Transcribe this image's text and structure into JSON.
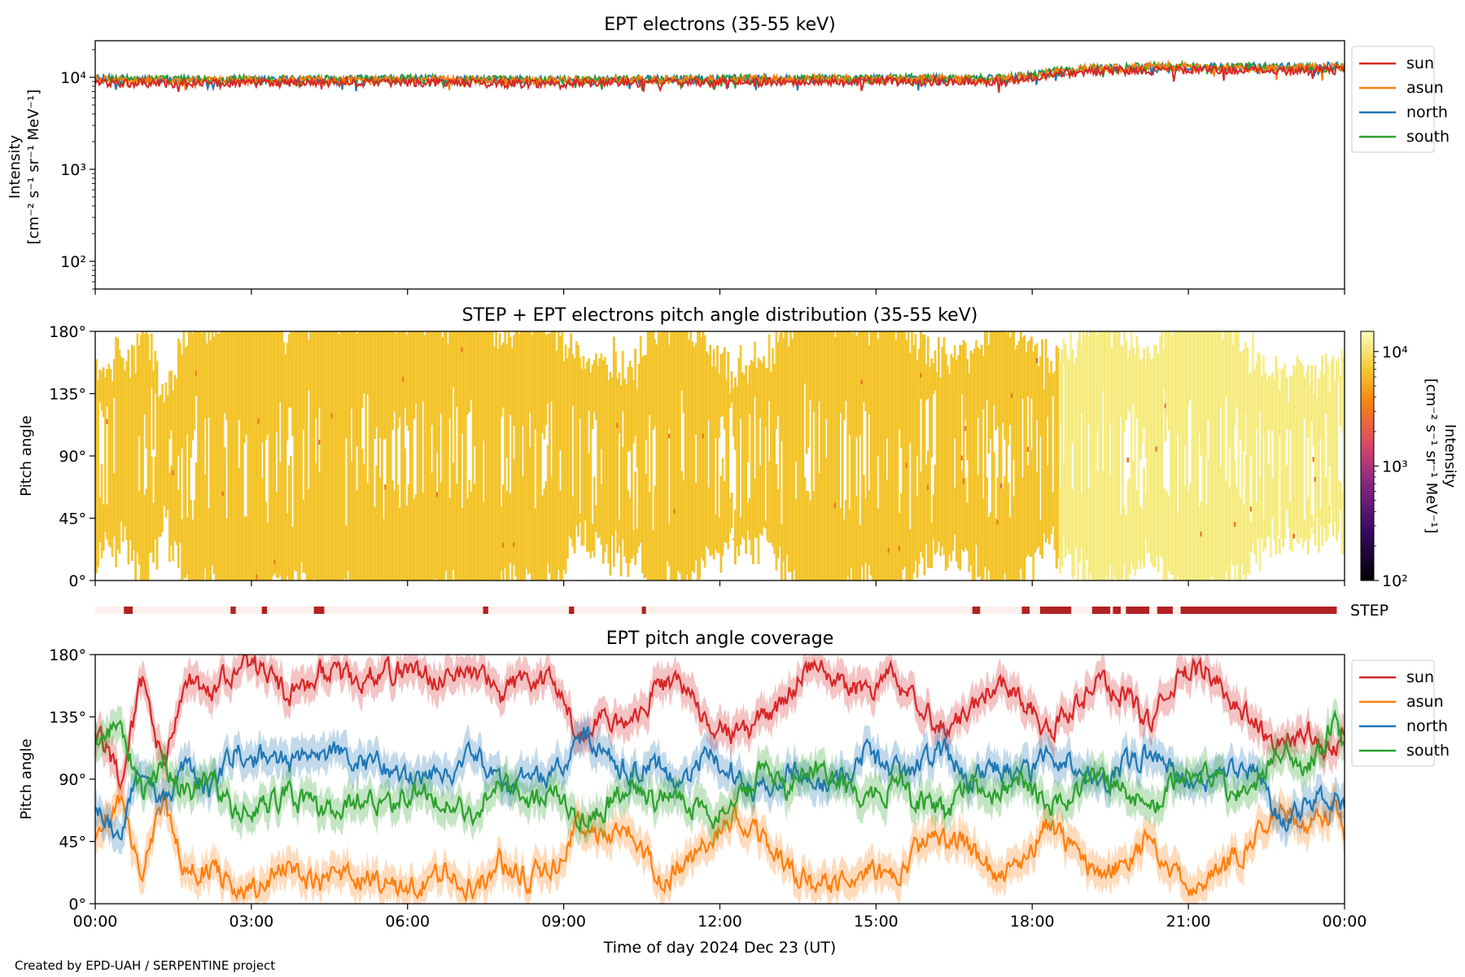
{
  "figure": {
    "footer": "Created by EPD-UAH / SERPENTINE project",
    "xlabel": "Time of day 2024 Dec 23 (UT)",
    "x_ticks": [
      "00:00",
      "03:00",
      "06:00",
      "09:00",
      "12:00",
      "15:00",
      "18:00",
      "21:00",
      "00:00"
    ]
  },
  "chart_data": [
    {
      "type": "line",
      "title": "EPT electrons (35-55 keV)",
      "ylabel": "Intensity",
      "ylabel_units": "[cm⁻² s⁻¹ sr⁻¹ MeV⁻¹]",
      "yscale": "log",
      "ylim": [
        50,
        25000
      ],
      "y_tick_labels": [
        "10²",
        "10³",
        "10⁴"
      ],
      "x_range_hours": [
        0,
        24
      ],
      "legend_position": "outside-right",
      "series": [
        {
          "name": "sun",
          "color": "#d62728",
          "x_hours": [
            0,
            2,
            4,
            6,
            8,
            10,
            12,
            14,
            16,
            17.5,
            18,
            18.5,
            19,
            20,
            21,
            22,
            23,
            24
          ],
          "values": [
            8800,
            8600,
            8700,
            8900,
            8600,
            8800,
            8900,
            9000,
            9100,
            9000,
            10000,
            10800,
            11500,
            12000,
            12000,
            12000,
            12000,
            12100
          ]
        },
        {
          "name": "asun",
          "color": "#ff7f0e",
          "x_hours": [
            0,
            2,
            4,
            6,
            8,
            10,
            12,
            14,
            16,
            17.5,
            18,
            18.5,
            19,
            20,
            20.5,
            21,
            22,
            23,
            24
          ],
          "values": [
            9400,
            9200,
            9300,
            9400,
            9200,
            9300,
            9400,
            9500,
            9600,
            9500,
            10500,
            11500,
            12300,
            12800,
            13500,
            12800,
            12500,
            12600,
            12700
          ]
        },
        {
          "name": "north",
          "color": "#1f77b4",
          "x_hours": [
            0,
            2,
            4,
            6,
            8,
            10,
            12,
            14,
            16,
            17.5,
            18,
            18.5,
            19,
            20,
            21,
            22,
            23,
            24
          ],
          "values": [
            9600,
            9300,
            9400,
            9500,
            9300,
            9400,
            9500,
            9600,
            9700,
            9600,
            10600,
            11500,
            12200,
            12700,
            12800,
            12800,
            13000,
            13500
          ]
        },
        {
          "name": "south",
          "color": "#2ca02c",
          "x_hours": [
            0,
            2,
            4,
            6,
            8,
            10,
            12,
            14,
            16,
            17.5,
            18,
            18.5,
            19,
            20,
            21,
            22,
            23,
            24
          ],
          "values": [
            9700,
            9400,
            9500,
            9700,
            9400,
            9500,
            9600,
            9700,
            9800,
            9700,
            10700,
            11600,
            12300,
            13000,
            13200,
            12900,
            12800,
            12900
          ]
        }
      ]
    },
    {
      "type": "heatmap",
      "title": "STEP + EPT electrons pitch angle distribution (35-55 keV)",
      "ylabel": "Pitch angle",
      "ylim": [
        0,
        180
      ],
      "y_tick_labels": [
        "0°",
        "45°",
        "90°",
        "135°",
        "180°"
      ],
      "x_range_hours": [
        0,
        24
      ],
      "colorbar": {
        "label": "Intensity",
        "units": "[cm⁻² s⁻¹ sr⁻¹ MeV⁻¹]",
        "scale": "log",
        "range": [
          100,
          15000
        ],
        "tick_labels": [
          "10²",
          "10³",
          "10⁴"
        ]
      },
      "intensity_by_period": [
        {
          "from_hour": 0,
          "to_hour": 18.5,
          "value": 9000
        },
        {
          "from_hour": 18.5,
          "to_hour": 24,
          "value": 12500
        }
      ]
    },
    {
      "type": "bar",
      "label": "STEP",
      "color": "#b22222",
      "x_range_hours": [
        0,
        24
      ],
      "active_intervals_hours": [
        [
          0.55,
          0.72
        ],
        [
          2.6,
          2.7
        ],
        [
          3.2,
          3.3
        ],
        [
          4.2,
          4.4
        ],
        [
          7.45,
          7.55
        ],
        [
          9.1,
          9.2
        ],
        [
          10.5,
          10.58
        ],
        [
          16.85,
          17.0
        ],
        [
          17.8,
          17.95
        ],
        [
          18.15,
          18.75
        ],
        [
          19.15,
          19.5
        ],
        [
          19.55,
          19.7
        ],
        [
          19.8,
          20.25
        ],
        [
          20.4,
          20.7
        ],
        [
          20.85,
          23.85
        ]
      ]
    },
    {
      "type": "line",
      "title": "EPT pitch angle coverage",
      "ylabel": "Pitch angle",
      "ylim": [
        0,
        180
      ],
      "y_tick_labels": [
        "0°",
        "45°",
        "90°",
        "135°",
        "180°"
      ],
      "x_range_hours": [
        0,
        24
      ],
      "legend_position": "outside-right",
      "series": [
        {
          "name": "sun",
          "color": "#d62728",
          "band_halfwidth_deg": 12,
          "x_hours": [
            0,
            0.5,
            0.9,
            1.3,
            1.8,
            2.2,
            2.7,
            3.2,
            3.7,
            4.3,
            5.0,
            5.5,
            6.0,
            6.7,
            7.3,
            7.8,
            8.3,
            8.8,
            9.3,
            9.8,
            10.3,
            10.8,
            11.3,
            11.8,
            12.3,
            12.8,
            13.3,
            13.8,
            14.3,
            14.8,
            15.3,
            15.8,
            16.3,
            16.8,
            17.3,
            17.8,
            18.3,
            18.8,
            19.3,
            19.8,
            20.3,
            20.8,
            21.3,
            21.8,
            22.3,
            22.8,
            23.3,
            23.8,
            24
          ],
          "values": [
            128,
            92,
            160,
            100,
            160,
            150,
            172,
            170,
            150,
            168,
            162,
            166,
            170,
            160,
            170,
            150,
            164,
            158,
            120,
            130,
            125,
            160,
            155,
            135,
            120,
            132,
            150,
            172,
            160,
            155,
            165,
            140,
            130,
            140,
            162,
            150,
            122,
            142,
            160,
            150,
            130,
            165,
            170,
            150,
            130,
            112,
            125,
            110,
            128
          ]
        },
        {
          "name": "asun",
          "color": "#ff7f0e",
          "band_halfwidth_deg": 12,
          "x_hours": [
            0,
            0.5,
            0.9,
            1.3,
            1.8,
            2.2,
            2.7,
            3.2,
            3.7,
            4.3,
            5.0,
            5.5,
            6.0,
            6.7,
            7.3,
            7.8,
            8.3,
            8.8,
            9.3,
            9.8,
            10.3,
            10.8,
            11.3,
            11.8,
            12.3,
            12.8,
            13.3,
            13.8,
            14.3,
            14.8,
            15.3,
            15.8,
            16.3,
            16.8,
            17.3,
            17.8,
            18.3,
            18.8,
            19.3,
            19.8,
            20.3,
            20.8,
            21.3,
            21.8,
            22.3,
            22.8,
            23.3,
            23.8,
            24
          ],
          "values": [
            52,
            80,
            18,
            75,
            20,
            28,
            10,
            12,
            30,
            14,
            20,
            15,
            10,
            22,
            12,
            30,
            18,
            25,
            60,
            48,
            52,
            20,
            28,
            45,
            60,
            50,
            28,
            10,
            18,
            25,
            15,
            40,
            50,
            40,
            20,
            30,
            58,
            38,
            20,
            30,
            50,
            15,
            10,
            30,
            50,
            68,
            55,
            70,
            52
          ]
        },
        {
          "name": "north",
          "color": "#1f77b4",
          "band_halfwidth_deg": 12,
          "x_hours": [
            0,
            0.5,
            0.9,
            1.3,
            1.8,
            2.2,
            2.7,
            3.2,
            3.7,
            4.3,
            5.0,
            5.5,
            6.0,
            6.7,
            7.3,
            7.8,
            8.3,
            8.8,
            9.3,
            9.8,
            10.3,
            10.8,
            11.3,
            11.8,
            12.3,
            12.8,
            13.3,
            13.8,
            14.3,
            14.8,
            15.3,
            15.8,
            16.3,
            16.8,
            17.3,
            17.8,
            18.3,
            18.8,
            19.3,
            19.8,
            20.3,
            20.8,
            21.3,
            21.8,
            22.3,
            22.8,
            23.3,
            23.8,
            24
          ],
          "values": [
            65,
            55,
            100,
            75,
            100,
            80,
            110,
            105,
            100,
            110,
            105,
            100,
            90,
            95,
            105,
            85,
            95,
            90,
            125,
            110,
            95,
            100,
            90,
            105,
            95,
            80,
            100,
            85,
            90,
            110,
            95,
            100,
            110,
            90,
            100,
            88,
            110,
            100,
            85,
            100,
            110,
            90,
            85,
            100,
            95,
            60,
            70,
            80,
            65
          ]
        },
        {
          "name": "south",
          "color": "#2ca02c",
          "band_halfwidth_deg": 12,
          "x_hours": [
            0,
            0.5,
            0.9,
            1.3,
            1.8,
            2.2,
            2.7,
            3.2,
            3.7,
            4.3,
            5.0,
            5.5,
            6.0,
            6.7,
            7.3,
            7.8,
            8.3,
            8.8,
            9.3,
            9.8,
            10.3,
            10.8,
            11.3,
            11.8,
            12.3,
            12.8,
            13.3,
            13.8,
            14.3,
            14.8,
            15.3,
            15.8,
            16.3,
            16.8,
            17.3,
            17.8,
            18.3,
            18.8,
            19.3,
            19.8,
            20.3,
            20.8,
            21.3,
            21.8,
            22.3,
            22.8,
            23.3,
            23.8,
            24
          ],
          "values": [
            115,
            130,
            80,
            100,
            80,
            90,
            65,
            70,
            80,
            65,
            75,
            70,
            80,
            75,
            65,
            90,
            72,
            80,
            55,
            70,
            85,
            75,
            80,
            60,
            70,
            95,
            80,
            100,
            90,
            70,
            85,
            75,
            65,
            85,
            80,
            92,
            70,
            80,
            95,
            80,
            72,
            90,
            95,
            80,
            85,
            110,
            100,
            130,
            115
          ]
        }
      ]
    }
  ]
}
